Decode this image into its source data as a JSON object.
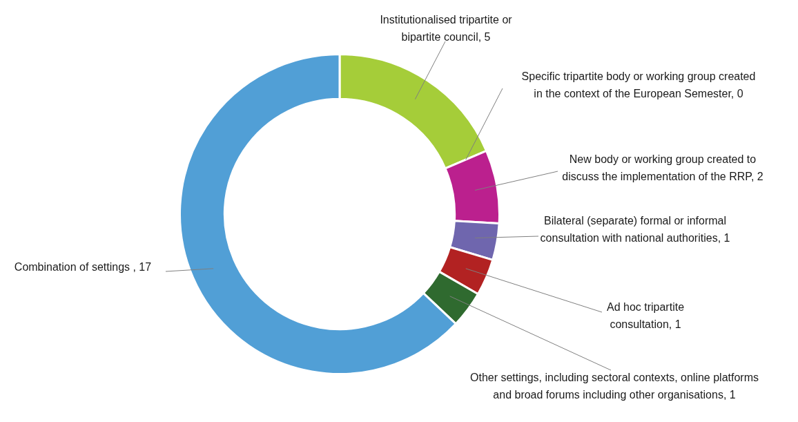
{
  "chart_data": {
    "type": "donut",
    "categories": [
      "Institutionalised tripartite or bipartite council, 5",
      "Specific tripartite body or working group created in the context of the European Semester, 0",
      "New body or working group created to discuss the implementation of the RRP, 2",
      "Bilateral (separate) formal or informal consultation with national authorities, 1",
      "Ad hoc tripartite consultation, 1",
      "Other settings, including sectoral contexts, online platforms and broad forums including other organisations, 1",
      "Combination of settings , 17"
    ],
    "values": [
      5,
      0,
      2,
      1,
      1,
      1,
      17
    ],
    "colors": [
      "#a5cd39",
      "#e07b00",
      "#bb208e",
      "#6f66ae",
      "#b22222",
      "#2f6a2f",
      "#519fd6"
    ],
    "legend": false
  }
}
